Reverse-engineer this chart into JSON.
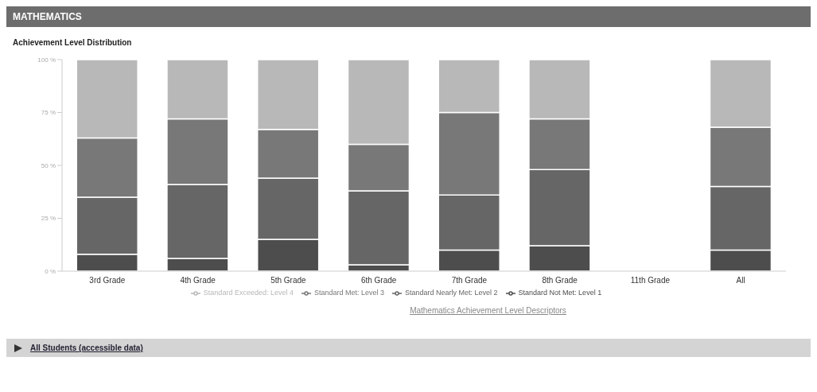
{
  "chart_data": {
    "type": "bar",
    "title": "MATHEMATICS",
    "subtitle": "Achievement Level Distribution",
    "categories": [
      "3rd Grade",
      "4th Grade",
      "5th Grade",
      "6th Grade",
      "7th Grade",
      "8th Grade",
      "11th Grade",
      "All"
    ],
    "stacked": true,
    "series": [
      {
        "name": "Standard Not Met: Level 1",
        "color": "#4d4d4d",
        "values": [
          8,
          6,
          15,
          3,
          10,
          12,
          null,
          10
        ]
      },
      {
        "name": "Standard Nearly Met: Level 2",
        "color": "#666666",
        "values": [
          27,
          35,
          29,
          35,
          26,
          36,
          null,
          30
        ]
      },
      {
        "name": "Standard Met: Level 3",
        "color": "#787878",
        "values": [
          28,
          31,
          23,
          22,
          39,
          24,
          null,
          28
        ]
      },
      {
        "name": "Standard Exceeded: Level 4",
        "color": "#b8b8b8",
        "values": [
          37,
          28,
          33,
          40,
          25,
          28,
          null,
          32
        ]
      }
    ],
    "ylim": [
      0,
      100
    ],
    "yticks": [
      {
        "value": 0,
        "label": "0 %"
      },
      {
        "value": 25,
        "label": "25 %"
      },
      {
        "value": 50,
        "label": "50 %"
      },
      {
        "value": 75,
        "label": "75 %"
      },
      {
        "value": 100,
        "label": "100 %"
      }
    ],
    "grid": false,
    "legend": "bottom",
    "annotations": [
      "Mathematics Achievement Level Descriptors",
      "All Students (accessible data)"
    ]
  }
}
